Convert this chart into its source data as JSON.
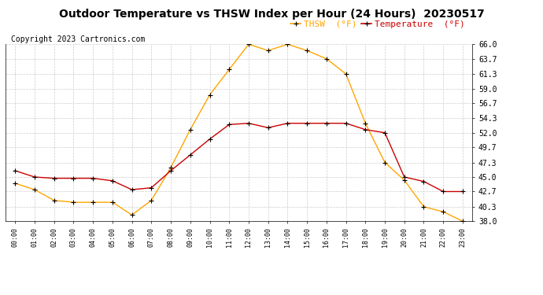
{
  "title": "Outdoor Temperature vs THSW Index per Hour (24 Hours)  20230517",
  "copyright": "Copyright 2023 Cartronics.com",
  "legend_thsw": "THSW  (°F)",
  "legend_temp": "Temperature  (°F)",
  "hours": [
    "00:00",
    "01:00",
    "02:00",
    "03:00",
    "04:00",
    "05:00",
    "06:00",
    "07:00",
    "08:00",
    "09:00",
    "10:00",
    "11:00",
    "12:00",
    "13:00",
    "14:00",
    "15:00",
    "16:00",
    "17:00",
    "18:00",
    "19:00",
    "20:00",
    "21:00",
    "22:00",
    "23:00"
  ],
  "thsw": [
    44.0,
    43.0,
    41.3,
    41.0,
    41.0,
    41.0,
    39.0,
    41.3,
    46.5,
    52.5,
    58.0,
    62.0,
    66.0,
    65.0,
    66.0,
    65.0,
    63.7,
    61.3,
    53.5,
    47.3,
    44.5,
    40.3,
    39.5,
    38.0
  ],
  "temperature": [
    46.0,
    45.0,
    44.8,
    44.8,
    44.8,
    44.4,
    43.0,
    43.3,
    46.0,
    48.5,
    51.0,
    53.3,
    53.5,
    52.8,
    53.5,
    53.5,
    53.5,
    53.5,
    52.5,
    52.0,
    45.0,
    44.3,
    42.7,
    42.7
  ],
  "ylim_min": 38.0,
  "ylim_max": 66.0,
  "yticks": [
    38.0,
    40.3,
    42.7,
    45.0,
    47.3,
    49.7,
    52.0,
    54.3,
    56.7,
    59.0,
    61.3,
    63.7,
    66.0
  ],
  "thsw_color": "#FFA500",
  "temp_color": "#CC0000",
  "marker_color": "#000000",
  "title_fontsize": 10,
  "copyright_fontsize": 7,
  "legend_fontsize": 8,
  "background_color": "#ffffff",
  "grid_color": "#cccccc"
}
